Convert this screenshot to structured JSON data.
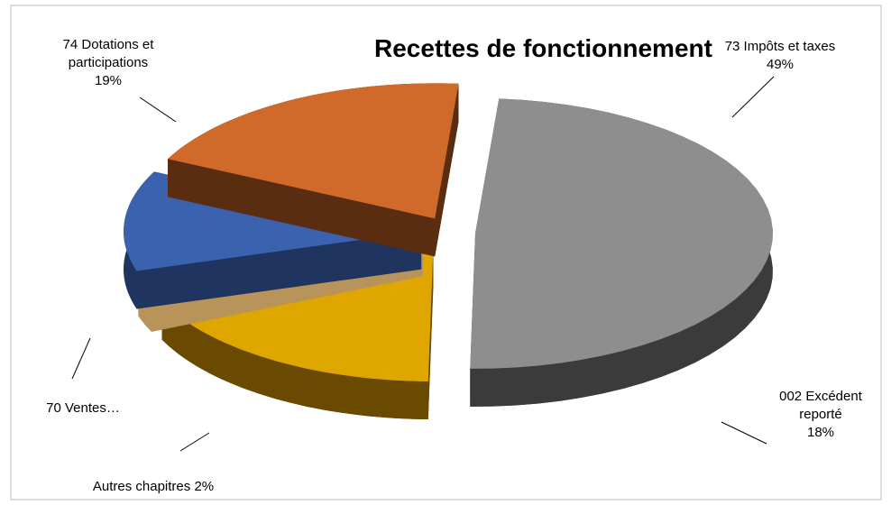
{
  "chart_data": {
    "type": "pie3d",
    "title": "Recettes de fonctionnement",
    "categories": [
      "73 Impôts et taxes",
      "002 Excédent reporté",
      "Autres chapitres",
      "70 Ventes…",
      "74 Dotations et participations"
    ],
    "values": [
      49,
      18,
      2,
      12,
      19
    ],
    "value_labels": [
      "49%",
      "18%",
      "2%",
      null,
      "19%"
    ],
    "colors": [
      "#8e8e8e",
      "#e0a600",
      "#f9cf86",
      "#3a62ae",
      "#d06a2a"
    ],
    "side_colors": [
      "#3b3b3b",
      "#6a4900",
      "#b8935a",
      "#1f355f",
      "#5a2c10"
    ]
  }
}
